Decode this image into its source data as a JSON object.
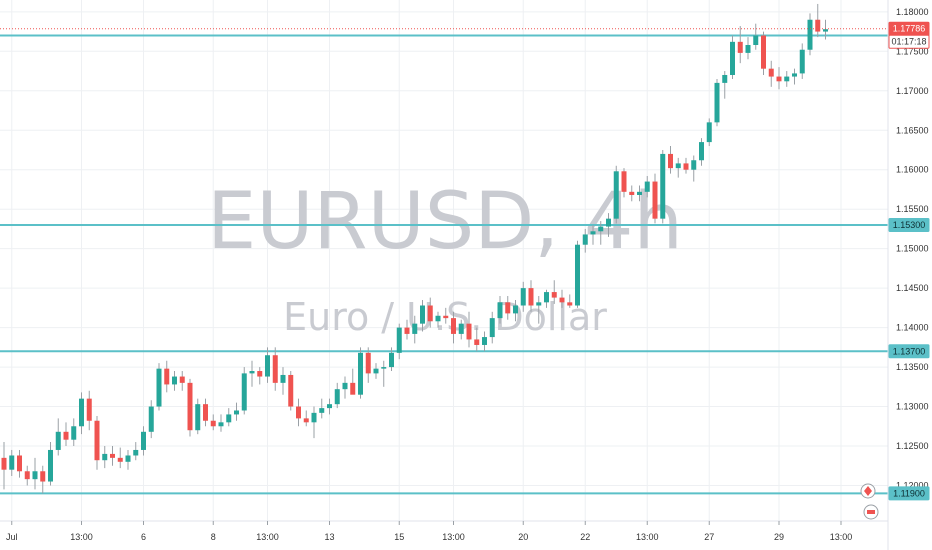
{
  "chart_data": {
    "type": "candlestick",
    "watermark": {
      "title": "EURUSD, 4h",
      "subtitle": "Euro / U.S. Dollar"
    },
    "ylim": [
      1.1155,
      1.1815
    ],
    "y_ticks": [
      "1.18000",
      "1.17500",
      "1.17000",
      "1.16500",
      "1.16000",
      "1.15500",
      "1.15000",
      "1.14500",
      "1.14000",
      "1.13500",
      "1.13000",
      "1.12500",
      "1.12000"
    ],
    "x_ticks": [
      {
        "label": "Jul",
        "i": 1
      },
      {
        "label": "13:00",
        "i": 10
      },
      {
        "label": "6",
        "i": 18
      },
      {
        "label": "8",
        "i": 27
      },
      {
        "label": "13:00",
        "i": 34
      },
      {
        "label": "13",
        "i": 42
      },
      {
        "label": "15",
        "i": 51
      },
      {
        "label": "13:00",
        "i": 58
      },
      {
        "label": "20",
        "i": 67
      },
      {
        "label": "22",
        "i": 75
      },
      {
        "label": "13:00",
        "i": 83
      },
      {
        "label": "27",
        "i": 91
      },
      {
        "label": "29",
        "i": 100
      },
      {
        "label": "13:00",
        "i": 108
      }
    ],
    "horizontal_lines": [
      {
        "value": 1.177,
        "label": "1.17700"
      },
      {
        "value": 1.153,
        "label": "1.15300"
      },
      {
        "value": 1.137,
        "label": "1.13700"
      },
      {
        "value": 1.119,
        "label": "1.11900"
      }
    ],
    "current_price": {
      "value": 1.17786,
      "label": "1.17786",
      "countdown": "01:17:18"
    },
    "colors": {
      "up": "#26a69a",
      "down": "#ef5350",
      "line": "#5bc0c8",
      "grid": "#eef0f3",
      "text": "#333333"
    },
    "candles": [
      [
        1.1235,
        1.1255,
        1.1195,
        1.122
      ],
      [
        1.122,
        1.1245,
        1.1212,
        1.1238
      ],
      [
        1.1238,
        1.1245,
        1.121,
        1.1218
      ],
      [
        1.1218,
        1.1225,
        1.12,
        1.1208
      ],
      [
        1.1208,
        1.1235,
        1.1195,
        1.1218
      ],
      [
        1.1218,
        1.1225,
        1.119,
        1.1205
      ],
      [
        1.1205,
        1.1255,
        1.12,
        1.1245
      ],
      [
        1.1245,
        1.1285,
        1.1238,
        1.1268
      ],
      [
        1.1268,
        1.128,
        1.125,
        1.1258
      ],
      [
        1.1258,
        1.1285,
        1.125,
        1.1275
      ],
      [
        1.1275,
        1.1318,
        1.1265,
        1.131
      ],
      [
        1.131,
        1.132,
        1.127,
        1.1282
      ],
      [
        1.1282,
        1.1288,
        1.122,
        1.1232
      ],
      [
        1.1232,
        1.125,
        1.1222,
        1.124
      ],
      [
        1.124,
        1.125,
        1.1225,
        1.1235
      ],
      [
        1.1235,
        1.1248,
        1.1222,
        1.123
      ],
      [
        1.123,
        1.1245,
        1.122,
        1.1238
      ],
      [
        1.1238,
        1.1255,
        1.1232,
        1.1245
      ],
      [
        1.1245,
        1.1275,
        1.1238,
        1.1268
      ],
      [
        1.1268,
        1.1308,
        1.126,
        1.13
      ],
      [
        1.13,
        1.1355,
        1.1295,
        1.1348
      ],
      [
        1.1348,
        1.1358,
        1.1318,
        1.1328
      ],
      [
        1.1328,
        1.1345,
        1.132,
        1.1338
      ],
      [
        1.1338,
        1.1345,
        1.132,
        1.133
      ],
      [
        1.133,
        1.1335,
        1.1262,
        1.127
      ],
      [
        1.127,
        1.131,
        1.1265,
        1.1303
      ],
      [
        1.1303,
        1.131,
        1.1275,
        1.1282
      ],
      [
        1.1282,
        1.129,
        1.127,
        1.1275
      ],
      [
        1.1275,
        1.129,
        1.1268,
        1.128
      ],
      [
        1.128,
        1.1298,
        1.1275,
        1.129
      ],
      [
        1.129,
        1.1305,
        1.1282,
        1.1295
      ],
      [
        1.1295,
        1.135,
        1.129,
        1.1342
      ],
      [
        1.1342,
        1.1358,
        1.1325,
        1.1345
      ],
      [
        1.1345,
        1.135,
        1.1328,
        1.1338
      ],
      [
        1.1338,
        1.1375,
        1.133,
        1.1365
      ],
      [
        1.1365,
        1.1375,
        1.132,
        1.133
      ],
      [
        1.133,
        1.135,
        1.1315,
        1.134
      ],
      [
        1.134,
        1.1345,
        1.1295,
        1.13
      ],
      [
        1.13,
        1.131,
        1.1275,
        1.1285
      ],
      [
        1.1285,
        1.1295,
        1.1275,
        1.128
      ],
      [
        1.128,
        1.13,
        1.126,
        1.1292
      ],
      [
        1.1292,
        1.131,
        1.1285,
        1.1298
      ],
      [
        1.1298,
        1.131,
        1.129,
        1.1303
      ],
      [
        1.1303,
        1.133,
        1.1298,
        1.1322
      ],
      [
        1.1322,
        1.1338,
        1.131,
        1.133
      ],
      [
        1.133,
        1.1348,
        1.1318,
        1.1315
      ],
      [
        1.1315,
        1.1375,
        1.131,
        1.1368
      ],
      [
        1.1368,
        1.1375,
        1.133,
        1.1342
      ],
      [
        1.1342,
        1.1355,
        1.1335,
        1.1348
      ],
      [
        1.1348,
        1.1358,
        1.1325,
        1.135
      ],
      [
        1.135,
        1.1375,
        1.1345,
        1.1368
      ],
      [
        1.1368,
        1.1405,
        1.136,
        1.14
      ],
      [
        1.14,
        1.141,
        1.1385,
        1.1392
      ],
      [
        1.1392,
        1.1415,
        1.138,
        1.1405
      ],
      [
        1.1405,
        1.1435,
        1.1395,
        1.1428
      ],
      [
        1.1428,
        1.1438,
        1.14,
        1.1408
      ],
      [
        1.1408,
        1.142,
        1.14,
        1.1415
      ],
      [
        1.1415,
        1.1425,
        1.1405,
        1.1412
      ],
      [
        1.1412,
        1.142,
        1.138,
        1.1392
      ],
      [
        1.1392,
        1.141,
        1.1385,
        1.1405
      ],
      [
        1.1405,
        1.142,
        1.1375,
        1.1385
      ],
      [
        1.1385,
        1.14,
        1.137,
        1.1378
      ],
      [
        1.1378,
        1.1395,
        1.137,
        1.1388
      ],
      [
        1.1388,
        1.142,
        1.138,
        1.1412
      ],
      [
        1.1412,
        1.144,
        1.1405,
        1.1432
      ],
      [
        1.1432,
        1.144,
        1.141,
        1.1418
      ],
      [
        1.1418,
        1.1435,
        1.1408,
        1.1428
      ],
      [
        1.1428,
        1.1458,
        1.142,
        1.145
      ],
      [
        1.145,
        1.146,
        1.142,
        1.1428
      ],
      [
        1.1428,
        1.144,
        1.1405,
        1.1432
      ],
      [
        1.1432,
        1.1448,
        1.1425,
        1.1445
      ],
      [
        1.1445,
        1.146,
        1.143,
        1.1438
      ],
      [
        1.1438,
        1.1448,
        1.1425,
        1.1432
      ],
      [
        1.1432,
        1.1442,
        1.1425,
        1.1428
      ],
      [
        1.1428,
        1.151,
        1.1425,
        1.1505
      ],
      [
        1.1505,
        1.1525,
        1.1495,
        1.1518
      ],
      [
        1.1518,
        1.153,
        1.1505,
        1.1522
      ],
      [
        1.1522,
        1.1535,
        1.1505,
        1.1528
      ],
      [
        1.1528,
        1.1545,
        1.1515,
        1.1538
      ],
      [
        1.1538,
        1.1605,
        1.1532,
        1.1598
      ],
      [
        1.1598,
        1.1602,
        1.1565,
        1.1572
      ],
      [
        1.1572,
        1.158,
        1.156,
        1.1568
      ],
      [
        1.1568,
        1.158,
        1.156,
        1.1572
      ],
      [
        1.1572,
        1.1592,
        1.1565,
        1.1585
      ],
      [
        1.1585,
        1.1595,
        1.1532,
        1.1538
      ],
      [
        1.1538,
        1.1625,
        1.1532,
        1.162
      ],
      [
        1.162,
        1.163,
        1.1595,
        1.1602
      ],
      [
        1.1602,
        1.1615,
        1.159,
        1.1608
      ],
      [
        1.1608,
        1.1615,
        1.1595,
        1.16
      ],
      [
        1.16,
        1.1618,
        1.1585,
        1.1612
      ],
      [
        1.1612,
        1.164,
        1.1605,
        1.1635
      ],
      [
        1.1635,
        1.1665,
        1.163,
        1.166
      ],
      [
        1.166,
        1.1715,
        1.1655,
        1.171
      ],
      [
        1.171,
        1.1725,
        1.169,
        1.172
      ],
      [
        1.172,
        1.177,
        1.1715,
        1.1762
      ],
      [
        1.1762,
        1.1782,
        1.1735,
        1.1748
      ],
      [
        1.1748,
        1.1768,
        1.174,
        1.1758
      ],
      [
        1.1758,
        1.1785,
        1.1752,
        1.177
      ],
      [
        1.177,
        1.1775,
        1.172,
        1.1728
      ],
      [
        1.1728,
        1.1738,
        1.1705,
        1.1718
      ],
      [
        1.1718,
        1.173,
        1.1702,
        1.1712
      ],
      [
        1.1712,
        1.1725,
        1.1705,
        1.1718
      ],
      [
        1.1718,
        1.1728,
        1.1708,
        1.1722
      ],
      [
        1.1722,
        1.176,
        1.1715,
        1.1752
      ],
      [
        1.1752,
        1.1798,
        1.1745,
        1.179
      ],
      [
        1.179,
        1.181,
        1.1768,
        1.1775
      ],
      [
        1.1775,
        1.179,
        1.1765,
        1.1778
      ]
    ]
  }
}
